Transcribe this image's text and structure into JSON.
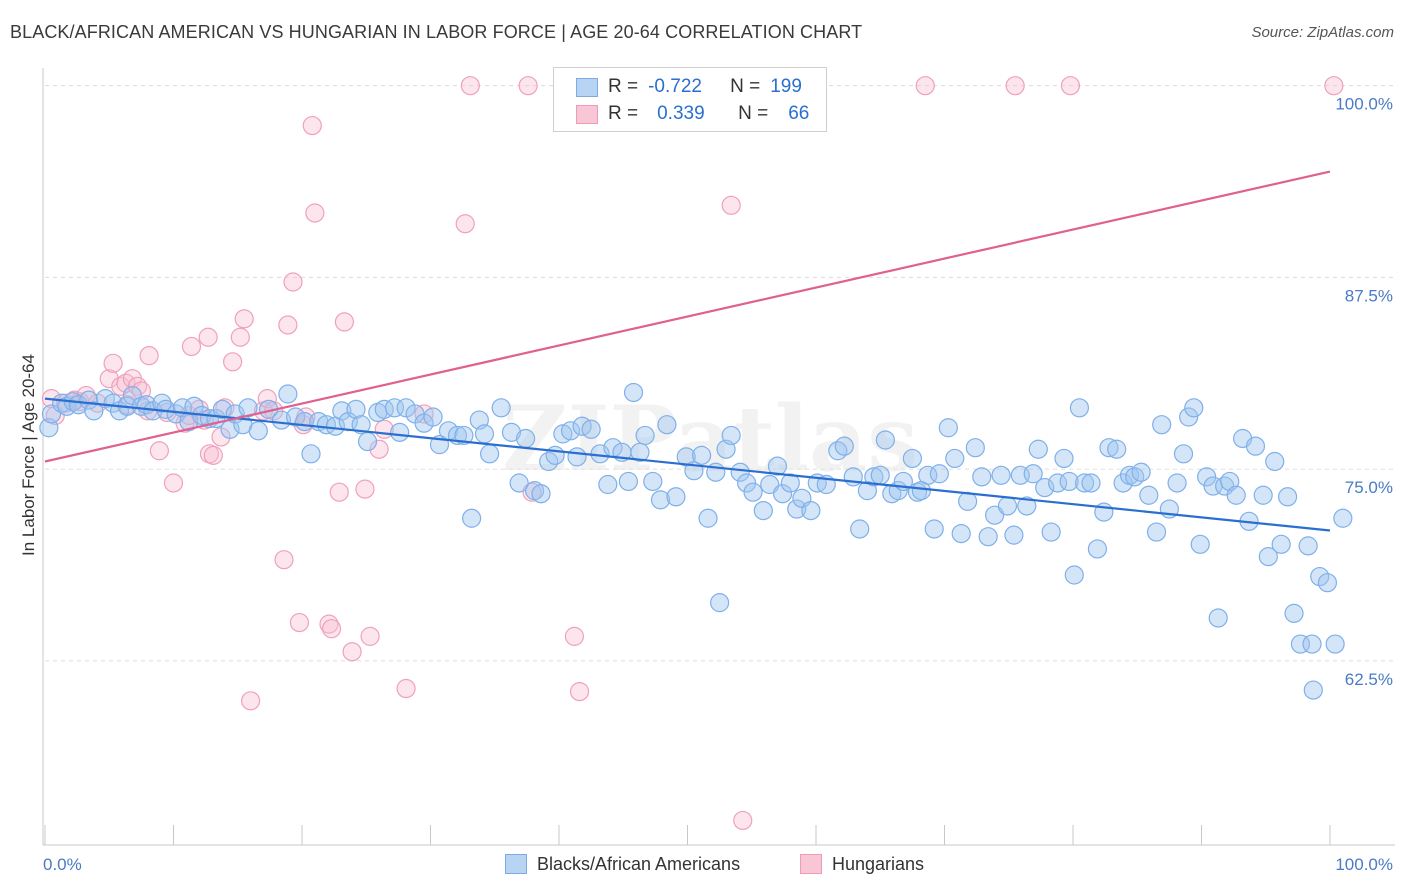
{
  "title": "BLACK/AFRICAN AMERICAN VS HUNGARIAN IN LABOR FORCE | AGE 20-64 CORRELATION CHART",
  "source": "Source: ZipAtlas.com",
  "watermark": "ZIPatlas",
  "colors": {
    "blue": "#7fb0ea",
    "blue_line": "#2a6fd0",
    "pink": "#f0a0bc",
    "pink_line": "#e0608e",
    "tick_text": "#4a7bc4"
  },
  "legend": {
    "rows": [
      {
        "r_label": "R =",
        "r_value": "-0.722",
        "n_label": "N =",
        "n_value": "199"
      },
      {
        "r_label": "R =",
        "r_value": "0.339",
        "n_label": "N =",
        "n_value": "66"
      }
    ]
  },
  "chart_data": {
    "type": "scatter",
    "xlabel": "",
    "ylabel": "In Labor Force | Age 20-64",
    "xlim": [
      0,
      100
    ],
    "ylim": [
      50.5,
      100.5
    ],
    "x_tick_labels": [
      "0.0%",
      "100.0%"
    ],
    "y_ticks": [
      {
        "value": 62.5,
        "label": "62.5%"
      },
      {
        "value": 75.0,
        "label": "75.0%"
      },
      {
        "value": 87.5,
        "label": "87.5%"
      },
      {
        "value": 100.0,
        "label": "100.0%"
      }
    ],
    "grid": "dashed horizontal",
    "legend_position": "top-center",
    "series": [
      {
        "name": "Blacks/African Americans",
        "color": "#7fb0ea",
        "trend": {
          "x": [
            0,
            100
          ],
          "y": [
            79.6,
            71.0
          ]
        },
        "points": [
          [
            0.3,
            77.7
          ],
          [
            0.5,
            78.6
          ],
          [
            1.3,
            79.3
          ],
          [
            1.7,
            79.1
          ],
          [
            2.2,
            79.4
          ],
          [
            2.6,
            79.2
          ],
          [
            3.4,
            79.5
          ],
          [
            3.8,
            78.8
          ],
          [
            4.7,
            79.6
          ],
          [
            5.3,
            79.3
          ],
          [
            5.8,
            78.8
          ],
          [
            6.4,
            79.1
          ],
          [
            6.8,
            79.8
          ],
          [
            7.5,
            79.1
          ],
          [
            7.9,
            79.2
          ],
          [
            8.4,
            78.8
          ],
          [
            9.1,
            79.3
          ],
          [
            9.4,
            78.9
          ],
          [
            10.2,
            78.6
          ],
          [
            10.7,
            79.0
          ],
          [
            11.2,
            78.1
          ],
          [
            11.6,
            79.1
          ],
          [
            12.2,
            78.5
          ],
          [
            12.8,
            78.3
          ],
          [
            13.3,
            78.3
          ],
          [
            13.8,
            78.9
          ],
          [
            14.4,
            77.6
          ],
          [
            14.8,
            78.6
          ],
          [
            15.4,
            77.9
          ],
          [
            15.8,
            79.0
          ],
          [
            16.6,
            77.5
          ],
          [
            17.4,
            78.9
          ],
          [
            18.4,
            78.2
          ],
          [
            18.9,
            79.9
          ],
          [
            19.5,
            78.4
          ],
          [
            20.2,
            78.1
          ],
          [
            20.7,
            76.0
          ],
          [
            21.3,
            78.1
          ],
          [
            21.9,
            77.9
          ],
          [
            22.6,
            77.8
          ],
          [
            23.1,
            78.8
          ],
          [
            23.6,
            78.1
          ],
          [
            24.2,
            78.9
          ],
          [
            24.6,
            77.9
          ],
          [
            25.1,
            76.8
          ],
          [
            25.9,
            78.7
          ],
          [
            26.4,
            78.9
          ],
          [
            27.2,
            79.0
          ],
          [
            27.6,
            77.4
          ],
          [
            28.1,
            79.0
          ],
          [
            28.8,
            78.6
          ],
          [
            29.5,
            78.0
          ],
          [
            30.2,
            78.4
          ],
          [
            30.7,
            76.6
          ],
          [
            31.4,
            77.5
          ],
          [
            32.1,
            77.2
          ],
          [
            32.6,
            77.2
          ],
          [
            33.2,
            71.8
          ],
          [
            33.8,
            78.2
          ],
          [
            34.2,
            77.3
          ],
          [
            34.6,
            76.0
          ],
          [
            35.5,
            79.0
          ],
          [
            36.3,
            77.4
          ],
          [
            36.9,
            74.1
          ],
          [
            37.4,
            77.0
          ],
          [
            38.1,
            73.6
          ],
          [
            38.6,
            73.4
          ],
          [
            39.2,
            75.5
          ],
          [
            39.7,
            75.9
          ],
          [
            40.3,
            77.3
          ],
          [
            40.9,
            77.5
          ],
          [
            41.4,
            75.8
          ],
          [
            41.8,
            77.8
          ],
          [
            42.5,
            77.6
          ],
          [
            43.2,
            76.0
          ],
          [
            43.8,
            74.0
          ],
          [
            44.2,
            76.4
          ],
          [
            44.9,
            76.1
          ],
          [
            45.4,
            74.2
          ],
          [
            45.8,
            80.0
          ],
          [
            46.3,
            76.1
          ],
          [
            46.7,
            77.2
          ],
          [
            47.3,
            74.2
          ],
          [
            47.9,
            73.0
          ],
          [
            48.4,
            77.9
          ],
          [
            49.1,
            73.2
          ],
          [
            49.9,
            75.8
          ],
          [
            50.5,
            74.9
          ],
          [
            51.1,
            75.9
          ],
          [
            51.6,
            71.8
          ],
          [
            52.2,
            74.8
          ],
          [
            52.5,
            66.3
          ],
          [
            53.0,
            76.3
          ],
          [
            53.4,
            77.2
          ],
          [
            54.1,
            74.8
          ],
          [
            54.6,
            74.1
          ],
          [
            55.1,
            73.5
          ],
          [
            55.9,
            72.3
          ],
          [
            56.4,
            74.0
          ],
          [
            57.0,
            75.2
          ],
          [
            57.4,
            73.4
          ],
          [
            58.0,
            74.1
          ],
          [
            58.5,
            72.4
          ],
          [
            58.9,
            73.1
          ],
          [
            59.6,
            72.3
          ],
          [
            60.1,
            74.1
          ],
          [
            60.8,
            74.0
          ],
          [
            61.7,
            76.2
          ],
          [
            62.2,
            76.5
          ],
          [
            62.9,
            74.5
          ],
          [
            63.4,
            71.1
          ],
          [
            64.0,
            73.6
          ],
          [
            64.5,
            74.5
          ],
          [
            65.0,
            74.6
          ],
          [
            65.4,
            76.9
          ],
          [
            65.9,
            73.4
          ],
          [
            66.4,
            73.6
          ],
          [
            66.8,
            74.2
          ],
          [
            67.5,
            75.7
          ],
          [
            67.9,
            73.5
          ],
          [
            68.2,
            73.6
          ],
          [
            68.7,
            74.6
          ],
          [
            69.2,
            71.1
          ],
          [
            69.6,
            74.7
          ],
          [
            70.3,
            77.7
          ],
          [
            70.8,
            75.7
          ],
          [
            71.3,
            70.8
          ],
          [
            71.8,
            72.9
          ],
          [
            72.4,
            76.4
          ],
          [
            72.9,
            74.5
          ],
          [
            73.4,
            70.6
          ],
          [
            73.9,
            72.0
          ],
          [
            74.4,
            74.6
          ],
          [
            74.9,
            72.6
          ],
          [
            75.4,
            70.7
          ],
          [
            75.9,
            74.6
          ],
          [
            76.4,
            72.6
          ],
          [
            76.9,
            74.7
          ],
          [
            77.3,
            76.3
          ],
          [
            77.8,
            73.8
          ],
          [
            78.3,
            70.9
          ],
          [
            78.8,
            74.1
          ],
          [
            79.3,
            75.7
          ],
          [
            79.7,
            74.2
          ],
          [
            80.1,
            68.1
          ],
          [
            80.5,
            79.0
          ],
          [
            80.9,
            74.1
          ],
          [
            81.4,
            74.1
          ],
          [
            81.9,
            69.8
          ],
          [
            82.4,
            72.2
          ],
          [
            82.8,
            76.4
          ],
          [
            83.4,
            76.3
          ],
          [
            83.9,
            74.1
          ],
          [
            84.4,
            74.6
          ],
          [
            84.8,
            74.5
          ],
          [
            85.3,
            74.8
          ],
          [
            85.9,
            73.3
          ],
          [
            86.5,
            70.9
          ],
          [
            86.9,
            77.9
          ],
          [
            87.5,
            72.4
          ],
          [
            88.1,
            74.1
          ],
          [
            88.6,
            76.0
          ],
          [
            89.0,
            78.4
          ],
          [
            89.4,
            79.0
          ],
          [
            89.9,
            70.1
          ],
          [
            90.4,
            74.5
          ],
          [
            90.9,
            73.9
          ],
          [
            91.3,
            65.3
          ],
          [
            91.8,
            73.9
          ],
          [
            92.2,
            74.2
          ],
          [
            92.7,
            73.3
          ],
          [
            93.2,
            77.0
          ],
          [
            93.7,
            71.6
          ],
          [
            94.2,
            76.5
          ],
          [
            94.8,
            73.3
          ],
          [
            95.2,
            69.3
          ],
          [
            95.7,
            75.5
          ],
          [
            96.2,
            70.1
          ],
          [
            96.7,
            73.2
          ],
          [
            97.2,
            65.6
          ],
          [
            97.7,
            63.6
          ],
          [
            98.3,
            70.0
          ],
          [
            98.6,
            63.6
          ],
          [
            99.2,
            68.0
          ],
          [
            99.8,
            67.6
          ],
          [
            100.4,
            63.6
          ],
          [
            101.0,
            71.8
          ],
          [
            98.7,
            60.6
          ]
        ]
      },
      {
        "name": "Hungarians",
        "color": "#f0a0bc",
        "trend": {
          "x": [
            0,
            100
          ],
          "y": [
            75.5,
            94.4
          ]
        },
        "points": [
          [
            0.5,
            79.6
          ],
          [
            0.8,
            78.5
          ],
          [
            1.6,
            79.3
          ],
          [
            2.3,
            79.5
          ],
          [
            2.7,
            79.4
          ],
          [
            3.2,
            79.8
          ],
          [
            4.1,
            79.3
          ],
          [
            5.0,
            80.9
          ],
          [
            5.3,
            81.9
          ],
          [
            5.9,
            80.4
          ],
          [
            6.3,
            80.6
          ],
          [
            6.4,
            79.2
          ],
          [
            6.8,
            80.9
          ],
          [
            7.2,
            80.4
          ],
          [
            7.5,
            80.1
          ],
          [
            8.0,
            78.8
          ],
          [
            8.1,
            82.4
          ],
          [
            8.9,
            76.2
          ],
          [
            9.5,
            78.7
          ],
          [
            10.0,
            74.1
          ],
          [
            10.9,
            78.0
          ],
          [
            11.2,
            78.5
          ],
          [
            11.4,
            83.0
          ],
          [
            12.0,
            78.9
          ],
          [
            12.4,
            78.2
          ],
          [
            12.7,
            83.6
          ],
          [
            12.8,
            76.0
          ],
          [
            13.1,
            75.9
          ],
          [
            13.7,
            77.1
          ],
          [
            14.0,
            79.0
          ],
          [
            14.6,
            82.0
          ],
          [
            15.2,
            83.6
          ],
          [
            15.5,
            84.8
          ],
          [
            16.0,
            59.9
          ],
          [
            17.0,
            78.8
          ],
          [
            17.3,
            79.6
          ],
          [
            17.8,
            78.8
          ],
          [
            18.6,
            69.1
          ],
          [
            18.9,
            84.4
          ],
          [
            19.3,
            87.2
          ],
          [
            19.8,
            65.0
          ],
          [
            20.1,
            77.9
          ],
          [
            20.3,
            78.4
          ],
          [
            20.8,
            97.4
          ],
          [
            21.0,
            91.7
          ],
          [
            22.1,
            64.9
          ],
          [
            22.3,
            64.6
          ],
          [
            22.9,
            73.5
          ],
          [
            23.3,
            84.6
          ],
          [
            23.9,
            63.1
          ],
          [
            24.9,
            73.7
          ],
          [
            25.3,
            64.1
          ],
          [
            26.0,
            76.3
          ],
          [
            26.4,
            77.6
          ],
          [
            28.1,
            60.7
          ],
          [
            29.5,
            78.6
          ],
          [
            32.7,
            91.0
          ],
          [
            33.1,
            100.0
          ],
          [
            37.9,
            73.5
          ],
          [
            37.6,
            100.0
          ],
          [
            41.2,
            64.1
          ],
          [
            41.6,
            60.5
          ],
          [
            47.0,
            100.0
          ],
          [
            53.4,
            92.2
          ],
          [
            54.3,
            52.1
          ],
          [
            68.5,
            100.0
          ],
          [
            75.5,
            100.0
          ],
          [
            79.8,
            100.0
          ],
          [
            100.3,
            100.0
          ]
        ]
      }
    ]
  }
}
